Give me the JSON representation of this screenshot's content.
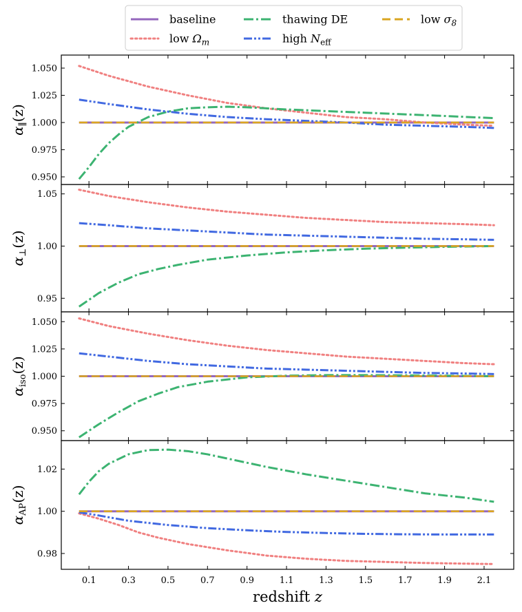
{
  "chart_data": {
    "type": "line",
    "xlabel_text": "redshift",
    "xlabel_var": "z",
    "xlim": [
      -0.04,
      2.25
    ],
    "x_ticks": [
      0.1,
      0.3,
      0.5,
      0.7,
      0.9,
      1.1,
      1.3,
      1.5,
      1.7,
      1.9,
      2.1
    ],
    "x_tick_labels": [
      "0.1",
      "0.3",
      "0.5",
      "0.7",
      "0.9",
      "1.1",
      "1.3",
      "1.5",
      "1.7",
      "1.9",
      "2.1"
    ],
    "legend": {
      "placement": "top-center",
      "entries": [
        {
          "key": "baseline",
          "label": "baseline",
          "color": "#9467bd",
          "style": "solid"
        },
        {
          "key": "low_omega",
          "label": "low Ω",
          "sub": "m",
          "color": "#f08080",
          "style": "dotted"
        },
        {
          "key": "thawing",
          "label": "thawing DE",
          "color": "#3cb371",
          "style": "dashdot"
        },
        {
          "key": "high_neff",
          "label": "high N",
          "sub": "eff",
          "color": "#4169e1",
          "style": "dashdotdot"
        },
        {
          "key": "low_sigma8",
          "label": "low σ",
          "sub": "8",
          "color": "#daa520",
          "style": "dashed"
        }
      ]
    },
    "panels": [
      {
        "ylabel": "α",
        "ylabel_sub": "∥",
        "ylabel_suffix": "(z)",
        "ylim": [
          0.943,
          1.062
        ],
        "y_ticks": [
          0.95,
          0.975,
          1.0,
          1.025,
          1.05
        ],
        "y_tick_labels": [
          "0.950",
          "0.975",
          "1.000",
          "1.025",
          "1.050"
        ],
        "series": {
          "baseline": [
            [
              0.05,
              1.0
            ],
            [
              2.15,
              1.0
            ]
          ],
          "low_sigma8": [
            [
              0.05,
              1.0
            ],
            [
              2.15,
              1.0
            ]
          ],
          "low_omega": [
            [
              0.05,
              1.052
            ],
            [
              0.2,
              1.043
            ],
            [
              0.4,
              1.033
            ],
            [
              0.6,
              1.025
            ],
            [
              0.8,
              1.018
            ],
            [
              1.0,
              1.013
            ],
            [
              1.2,
              1.009
            ],
            [
              1.4,
              1.005
            ],
            [
              1.6,
              1.003
            ],
            [
              1.8,
              1.0
            ],
            [
              2.0,
              0.998
            ],
            [
              2.15,
              0.997
            ]
          ],
          "thawing": [
            [
              0.05,
              0.948
            ],
            [
              0.1,
              0.959
            ],
            [
              0.15,
              0.971
            ],
            [
              0.2,
              0.981
            ],
            [
              0.25,
              0.989
            ],
            [
              0.3,
              0.996
            ],
            [
              0.4,
              1.005
            ],
            [
              0.5,
              1.01
            ],
            [
              0.6,
              1.013
            ],
            [
              0.7,
              1.014
            ],
            [
              0.8,
              1.0145
            ],
            [
              0.9,
              1.014
            ],
            [
              1.1,
              1.012
            ],
            [
              1.3,
              1.0105
            ],
            [
              1.5,
              1.009
            ],
            [
              1.7,
              1.0075
            ],
            [
              1.9,
              1.006
            ],
            [
              2.15,
              1.004
            ]
          ],
          "high_neff": [
            [
              0.05,
              1.021
            ],
            [
              0.2,
              1.017
            ],
            [
              0.4,
              1.012
            ],
            [
              0.6,
              1.008
            ],
            [
              0.8,
              1.005
            ],
            [
              1.0,
              1.003
            ],
            [
              1.2,
              1.0015
            ],
            [
              1.4,
              1.0
            ],
            [
              1.6,
              0.998
            ],
            [
              1.8,
              0.997
            ],
            [
              2.0,
              0.996
            ],
            [
              2.15,
              0.995
            ]
          ]
        }
      },
      {
        "ylabel": "α",
        "ylabel_sub": "⊥",
        "ylabel_suffix": "(z)",
        "ylim": [
          0.937,
          1.059
        ],
        "y_ticks": [
          0.95,
          1.0,
          1.05
        ],
        "y_tick_labels": [
          "0.95",
          "1.00",
          "1.05"
        ],
        "series": {
          "baseline": [
            [
              0.05,
              1.0
            ],
            [
              2.15,
              1.0
            ]
          ],
          "low_sigma8": [
            [
              0.05,
              1.0
            ],
            [
              2.15,
              1.0
            ]
          ],
          "low_omega": [
            [
              0.05,
              1.054
            ],
            [
              0.2,
              1.048
            ],
            [
              0.4,
              1.042
            ],
            [
              0.6,
              1.037
            ],
            [
              0.8,
              1.033
            ],
            [
              1.0,
              1.03
            ],
            [
              1.2,
              1.027
            ],
            [
              1.4,
              1.025
            ],
            [
              1.6,
              1.023
            ],
            [
              1.8,
              1.022
            ],
            [
              2.0,
              1.021
            ],
            [
              2.15,
              1.02
            ]
          ],
          "thawing": [
            [
              0.05,
              0.942
            ],
            [
              0.15,
              0.955
            ],
            [
              0.25,
              0.965
            ],
            [
              0.35,
              0.973
            ],
            [
              0.45,
              0.978
            ],
            [
              0.55,
              0.982
            ],
            [
              0.7,
              0.987
            ],
            [
              0.9,
              0.991
            ],
            [
              1.1,
              0.994
            ],
            [
              1.3,
              0.996
            ],
            [
              1.5,
              0.9975
            ],
            [
              1.7,
              0.9985
            ],
            [
              1.9,
              0.9993
            ],
            [
              2.15,
              1.0
            ]
          ],
          "high_neff": [
            [
              0.05,
              1.022
            ],
            [
              0.2,
              1.02
            ],
            [
              0.4,
              1.017
            ],
            [
              0.6,
              1.015
            ],
            [
              0.8,
              1.013
            ],
            [
              1.0,
              1.011
            ],
            [
              1.2,
              1.01
            ],
            [
              1.4,
              1.009
            ],
            [
              1.6,
              1.008
            ],
            [
              1.8,
              1.007
            ],
            [
              2.0,
              1.0065
            ],
            [
              2.15,
              1.006
            ]
          ]
        }
      },
      {
        "ylabel": "α",
        "ylabel_sub": "iso",
        "ylabel_suffix": "(z)",
        "ylim": [
          0.941,
          1.059
        ],
        "y_ticks": [
          0.95,
          0.975,
          1.0,
          1.025,
          1.05
        ],
        "y_tick_labels": [
          "0.950",
          "0.975",
          "1.000",
          "1.025",
          "1.050"
        ],
        "series": {
          "baseline": [
            [
              0.05,
              1.0
            ],
            [
              2.15,
              1.0
            ]
          ],
          "low_sigma8": [
            [
              0.05,
              1.0
            ],
            [
              2.15,
              1.0
            ]
          ],
          "low_omega": [
            [
              0.05,
              1.053
            ],
            [
              0.2,
              1.046
            ],
            [
              0.4,
              1.039
            ],
            [
              0.6,
              1.033
            ],
            [
              0.8,
              1.028
            ],
            [
              1.0,
              1.024
            ],
            [
              1.2,
              1.021
            ],
            [
              1.4,
              1.018
            ],
            [
              1.6,
              1.016
            ],
            [
              1.8,
              1.014
            ],
            [
              2.0,
              1.012
            ],
            [
              2.15,
              1.011
            ]
          ],
          "thawing": [
            [
              0.05,
              0.944
            ],
            [
              0.15,
              0.956
            ],
            [
              0.25,
              0.967
            ],
            [
              0.35,
              0.977
            ],
            [
              0.45,
              0.984
            ],
            [
              0.55,
              0.99
            ],
            [
              0.7,
              0.995
            ],
            [
              0.9,
              0.999
            ],
            [
              1.1,
              1.0005
            ],
            [
              1.3,
              1.001
            ],
            [
              1.5,
              1.001
            ],
            [
              1.7,
              1.0008
            ],
            [
              1.9,
              1.0005
            ],
            [
              2.15,
              1.0
            ]
          ],
          "high_neff": [
            [
              0.05,
              1.021
            ],
            [
              0.2,
              1.018
            ],
            [
              0.4,
              1.014
            ],
            [
              0.6,
              1.011
            ],
            [
              0.8,
              1.009
            ],
            [
              1.0,
              1.007
            ],
            [
              1.2,
              1.006
            ],
            [
              1.4,
              1.005
            ],
            [
              1.6,
              1.004
            ],
            [
              1.8,
              1.003
            ],
            [
              2.0,
              1.0025
            ],
            [
              2.15,
              1.002
            ]
          ]
        }
      },
      {
        "ylabel": "α",
        "ylabel_sub": "AP",
        "ylabel_suffix": "(z)",
        "ylim": [
          0.9725,
          1.0335
        ],
        "y_ticks": [
          0.98,
          1.0,
          1.02
        ],
        "y_tick_labels": [
          "0.98",
          "1.00",
          "1.02"
        ],
        "series": {
          "baseline": [
            [
              0.05,
              1.0
            ],
            [
              2.15,
              1.0
            ]
          ],
          "low_sigma8": [
            [
              0.05,
              1.0
            ],
            [
              2.15,
              1.0
            ]
          ],
          "low_omega": [
            [
              0.05,
              0.999
            ],
            [
              0.15,
              0.9965
            ],
            [
              0.25,
              0.9935
            ],
            [
              0.35,
              0.99
            ],
            [
              0.45,
              0.9875
            ],
            [
              0.6,
              0.9845
            ],
            [
              0.8,
              0.9815
            ],
            [
              1.0,
              0.979
            ],
            [
              1.2,
              0.9775
            ],
            [
              1.4,
              0.9765
            ],
            [
              1.6,
              0.976
            ],
            [
              1.8,
              0.9755
            ],
            [
              2.0,
              0.9752
            ],
            [
              2.15,
              0.975
            ]
          ],
          "thawing": [
            [
              0.05,
              1.008
            ],
            [
              0.1,
              1.014
            ],
            [
              0.15,
              1.019
            ],
            [
              0.2,
              1.0225
            ],
            [
              0.3,
              1.027
            ],
            [
              0.4,
              1.029
            ],
            [
              0.5,
              1.0292
            ],
            [
              0.6,
              1.0285
            ],
            [
              0.7,
              1.027
            ],
            [
              0.8,
              1.025
            ],
            [
              0.9,
              1.023
            ],
            [
              1.0,
              1.021
            ],
            [
              1.2,
              1.0175
            ],
            [
              1.4,
              1.0145
            ],
            [
              1.6,
              1.0115
            ],
            [
              1.8,
              1.0085
            ],
            [
              2.0,
              1.0065
            ],
            [
              2.15,
              1.0045
            ]
          ],
          "high_neff": [
            [
              0.05,
              0.9995
            ],
            [
              0.15,
              0.998
            ],
            [
              0.3,
              0.9955
            ],
            [
              0.5,
              0.9935
            ],
            [
              0.7,
              0.992
            ],
            [
              0.9,
              0.991
            ],
            [
              1.1,
              0.9902
            ],
            [
              1.3,
              0.9897
            ],
            [
              1.5,
              0.9893
            ],
            [
              1.7,
              0.9891
            ],
            [
              1.9,
              0.989
            ],
            [
              2.15,
              0.989
            ]
          ]
        }
      }
    ]
  }
}
